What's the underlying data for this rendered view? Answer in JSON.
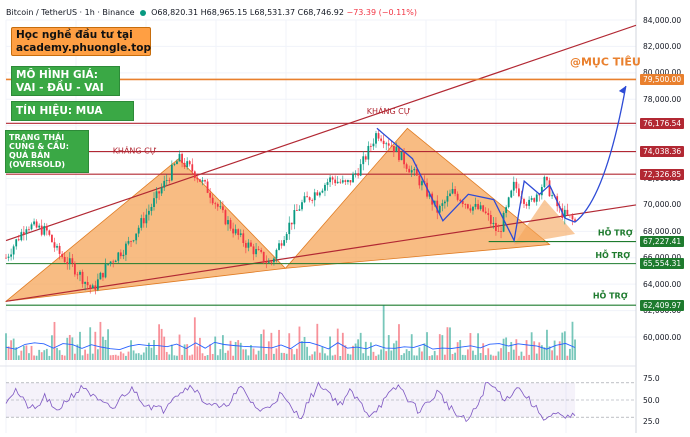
{
  "header": {
    "symbol": "Bitcoin / TetherUS · 1h · Binance",
    "open": "O68,820.31",
    "high": "H68,965.15",
    "low": "L68,531.37",
    "close": "C68,746.92",
    "change": "−73.39 (−0.11%)"
  },
  "banner": {
    "line1": "Học nghề đầu tư tại",
    "line2": "academy.phuongle.top"
  },
  "pattern_box": {
    "line1": "MÔ HÌNH GIÁ:",
    "line2": "VAI - ĐẦU - VAI"
  },
  "signal_box": {
    "text": "TÍN HIỆU: MUA"
  },
  "state_box": {
    "line1": "TRẠNG THÁI",
    "line2": "CUNG & CẦU:",
    "line3": "QUÁ BÁN",
    "line4": "(OVERSOLD)"
  },
  "annotations": {
    "resistance_left": "KHÁNG CỰ",
    "resistance_head": "KHÁNG CỰ",
    "target": "@MỤC TIÊU",
    "support_1": "HỖ TRỢ",
    "support_2": "HỖ TRỢ",
    "support_3": "HỖ TRỢ"
  },
  "colors": {
    "up": "#089981",
    "down": "#f23645",
    "resistance": "#b22833",
    "support": "#1e7b2e",
    "target_line": "#e9802e",
    "shade": "#f5a55a",
    "pattern_path": "#2e4bd6",
    "rsi": "#7e57c2"
  },
  "chart_data": {
    "type": "line",
    "title": "Bitcoin / TetherUS · 1h · Binance",
    "price_axis": {
      "ticks": [
        "84,000.00",
        "82,000.00",
        "80,000.00",
        "78,000.00",
        "76,000.00",
        "74,000.00",
        "72,000.00",
        "70,000.00",
        "68,000.00",
        "66,000.00",
        "64,000.00",
        "62,000.00",
        "60,000.00"
      ],
      "ylim": [
        59500,
        84500
      ]
    },
    "levels": [
      {
        "label": "79,500.00",
        "value": 79500,
        "kind": "target"
      },
      {
        "label": "76,176.54",
        "value": 76176.54,
        "kind": "resistance"
      },
      {
        "label": "74,038.36",
        "value": 74038.36,
        "kind": "resistance"
      },
      {
        "label": "72,326.85",
        "value": 72326.85,
        "kind": "resistance"
      },
      {
        "label": "67,227.41",
        "value": 67227.41,
        "kind": "support"
      },
      {
        "label": "65,554.31",
        "value": 65554.31,
        "kind": "support"
      },
      {
        "label": "62,409.97",
        "value": 62409.97,
        "kind": "support"
      }
    ],
    "price_series": [
      {
        "t": 0,
        "v": 66000
      },
      {
        "t": 4,
        "v": 68500
      },
      {
        "t": 8,
        "v": 68000
      },
      {
        "t": 10,
        "v": 66500
      },
      {
        "t": 14,
        "v": 65000
      },
      {
        "t": 17,
        "v": 63500
      },
      {
        "t": 20,
        "v": 65500
      },
      {
        "t": 24,
        "v": 67000
      },
      {
        "t": 28,
        "v": 69500
      },
      {
        "t": 31,
        "v": 71500
      },
      {
        "t": 34,
        "v": 73500
      },
      {
        "t": 37,
        "v": 72500
      },
      {
        "t": 40,
        "v": 71000
      },
      {
        "t": 43,
        "v": 69000
      },
      {
        "t": 46,
        "v": 67500
      },
      {
        "t": 49,
        "v": 66500
      },
      {
        "t": 52,
        "v": 65500
      },
      {
        "t": 55,
        "v": 68000
      },
      {
        "t": 58,
        "v": 70000
      },
      {
        "t": 61,
        "v": 71000
      },
      {
        "t": 64,
        "v": 72000
      },
      {
        "t": 67,
        "v": 71500
      },
      {
        "t": 70,
        "v": 73000
      },
      {
        "t": 73,
        "v": 75500
      },
      {
        "t": 76,
        "v": 74500
      },
      {
        "t": 79,
        "v": 73000
      },
      {
        "t": 82,
        "v": 71500
      },
      {
        "t": 85,
        "v": 69500
      },
      {
        "t": 88,
        "v": 71000
      },
      {
        "t": 91,
        "v": 70000
      },
      {
        "t": 94,
        "v": 69500
      },
      {
        "t": 97,
        "v": 67800
      },
      {
        "t": 100,
        "v": 71500
      },
      {
        "t": 103,
        "v": 70000
      },
      {
        "t": 106,
        "v": 71800
      },
      {
        "t": 109,
        "v": 69500
      },
      {
        "t": 112,
        "v": 68700
      }
    ],
    "projection": [
      {
        "t": 112,
        "v": 68700
      },
      {
        "t": 122,
        "v": 79000
      }
    ],
    "rsi": {
      "ticks": [
        "75.0",
        "50.0",
        "25.0"
      ],
      "ylim": [
        15,
        85
      ],
      "bands": [
        70,
        30
      ],
      "values": [
        50,
        62,
        45,
        38,
        55,
        35,
        48,
        58,
        66,
        52,
        44,
        40,
        57,
        63,
        47,
        42,
        38,
        55,
        61,
        68,
        50,
        45,
        39,
        52,
        64,
        48,
        36,
        45,
        57,
        41,
        30,
        52,
        69,
        58,
        44,
        60,
        48,
        33,
        42,
        55,
        67,
        51,
        38,
        46,
        60,
        45,
        32,
        25,
        42,
        70,
        62,
        50,
        66,
        55,
        40,
        28,
        33,
        28,
        32
      ]
    },
    "grid": true,
    "legend": "none"
  }
}
